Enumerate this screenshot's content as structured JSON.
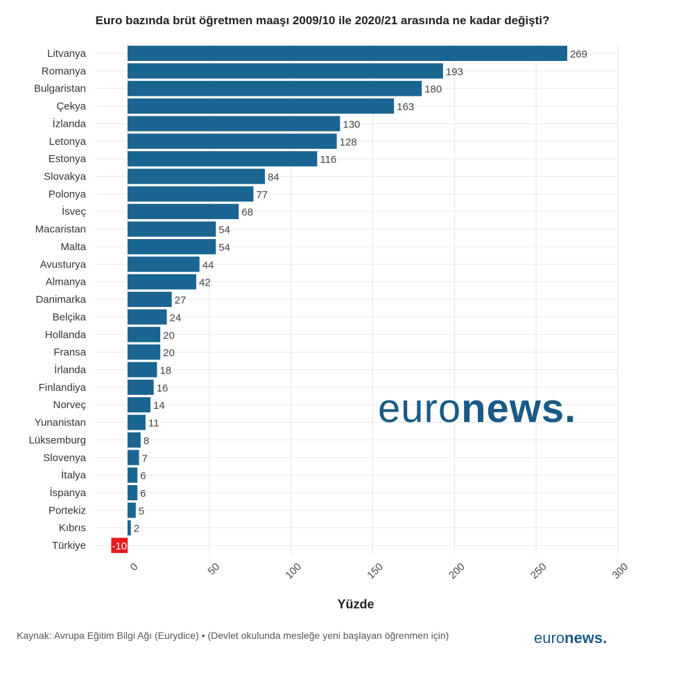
{
  "chart_data": {
    "type": "bar",
    "orientation": "horizontal",
    "title": "Euro bazında brüt öğretmen maaşı 2009/10 ile 2020/21 arasında ne kadar değişti?",
    "xlabel": "Yüzde",
    "ylabel": "",
    "xlim": [
      0,
      300
    ],
    "xticks": [
      0,
      50,
      100,
      150,
      200,
      250,
      300
    ],
    "categories": [
      "Litvanya",
      "Romanya",
      "Bulgaristan",
      "Çekya",
      "İzlanda",
      "Letonya",
      "Estonya",
      "Slovakya",
      "Polonya",
      "İsveç",
      "Macaristan",
      "Malta",
      "Avusturya",
      "Almanya",
      "Danimarka",
      "Belçika",
      "Hollanda",
      "Fransa",
      "İrlanda",
      "Finlandiya",
      "Norveç",
      "Yunanistan",
      "Lüksemburg",
      "Slovenya",
      "İtalya",
      "İspanya",
      "Portekiz",
      "Kıbrıs",
      "Türkiye"
    ],
    "values": [
      269,
      193,
      180,
      163,
      130,
      128,
      116,
      84,
      77,
      68,
      54,
      54,
      44,
      42,
      27,
      24,
      20,
      20,
      18,
      16,
      14,
      11,
      8,
      7,
      6,
      6,
      5,
      2,
      -10
    ],
    "colors": {
      "positive": "#1a6591",
      "negative": "#e8191b"
    },
    "grid": true
  },
  "source_text": "Kaynak: Avrupa Eğitim Bilgi Ağı (Eurydice) • (Devlet okulunda mesleğe yeni başlayan öğrenmen için)",
  "logo": {
    "part1": "euro",
    "part2": "news."
  }
}
